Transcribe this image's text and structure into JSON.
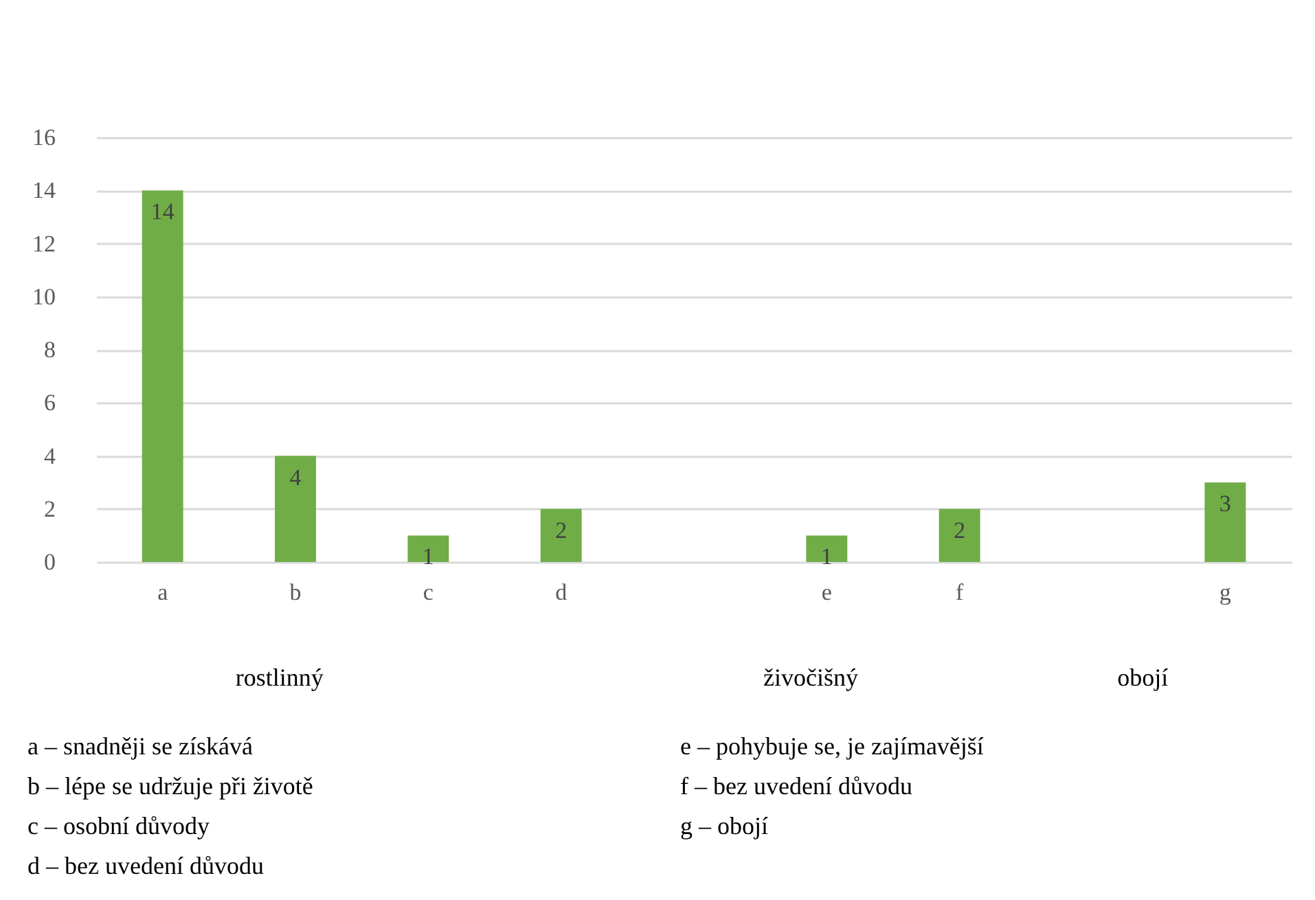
{
  "chart_data": {
    "type": "bar",
    "categories": [
      "a",
      "b",
      "c",
      "d",
      null,
      "e",
      "f",
      null,
      "g"
    ],
    "values": [
      14,
      4,
      1,
      2,
      null,
      1,
      2,
      null,
      3
    ],
    "color": "#70ad47",
    "ylim": [
      0,
      16
    ],
    "yticks": [
      0,
      2,
      4,
      6,
      8,
      10,
      12,
      14,
      16
    ],
    "grid": "y",
    "data_labels": true,
    "legend": false,
    "annotations": [
      "rostlinný",
      "živočišný",
      "obojí",
      "a – snadněji se získává",
      "b – lépe se udržuje při životě",
      "c – osobní důvody",
      "d – bez uvedení důvodu",
      "e – pohybuje se, je zajímavější",
      "f – bez uvedení důvodu",
      "g – obojí"
    ]
  }
}
